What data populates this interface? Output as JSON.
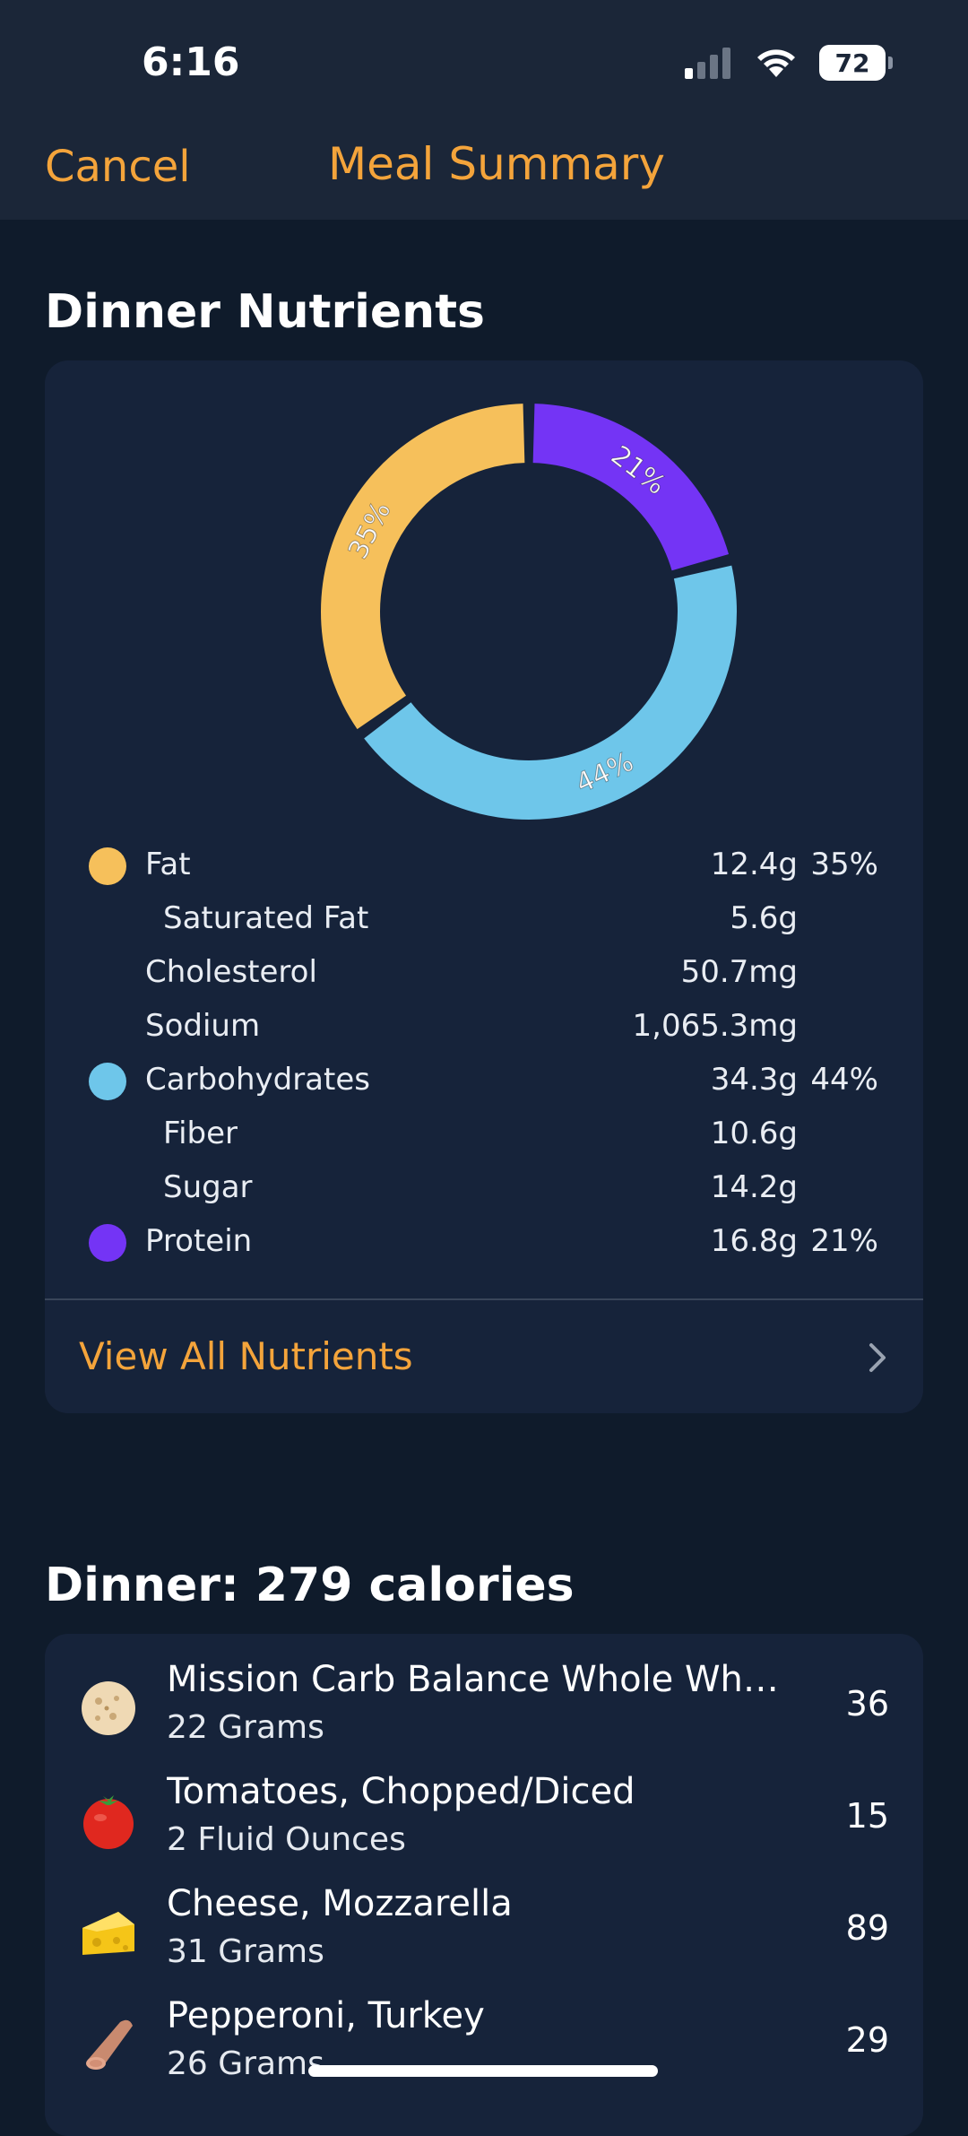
{
  "status": {
    "time": "6:16",
    "battery": "72",
    "signal_icon": "cellular-signal-icon",
    "wifi_icon": "wifi-icon"
  },
  "nav": {
    "cancel": "Cancel",
    "title": "Meal Summary"
  },
  "nutrients": {
    "title": "Dinner Nutrients",
    "rows": [
      {
        "label": "Fat",
        "amount": "12.4g",
        "pct": "35%",
        "color": "#f6c05b",
        "sub": false
      },
      {
        "label": "Saturated Fat",
        "amount": "5.6g",
        "pct": "",
        "color": "",
        "sub": true
      },
      {
        "label": "Cholesterol",
        "amount": "50.7mg",
        "pct": "",
        "color": "",
        "sub": false
      },
      {
        "label": "Sodium",
        "amount": "1,065.3mg",
        "pct": "",
        "color": "",
        "sub": false
      },
      {
        "label": "Carbohydrates",
        "amount": "34.3g",
        "pct": "44%",
        "color": "#6ec6ea",
        "sub": false
      },
      {
        "label": "Fiber",
        "amount": "10.6g",
        "pct": "",
        "color": "",
        "sub": true
      },
      {
        "label": "Sugar",
        "amount": "14.2g",
        "pct": "",
        "color": "",
        "sub": true
      },
      {
        "label": "Protein",
        "amount": "16.8g",
        "pct": "21%",
        "color": "#7434f5",
        "sub": false
      }
    ],
    "view_all": "View All Nutrients"
  },
  "chart_data": {
    "type": "pie",
    "donut": true,
    "categories": [
      "Fat",
      "Carbohydrates",
      "Protein"
    ],
    "values": [
      35,
      44,
      21
    ],
    "labels": [
      "35%",
      "44%",
      "21%"
    ],
    "colors": [
      "#f6c05b",
      "#6ec6ea",
      "#7434f5"
    ]
  },
  "dinner": {
    "title": "Dinner: 279 calories",
    "foods": [
      {
        "name": "Mission Carb Balance Whole Wheat T...",
        "qty": "22 Grams",
        "cal": "36",
        "icon": "tortilla-icon"
      },
      {
        "name": "Tomatoes, Chopped/Diced",
        "qty": "2 Fluid Ounces",
        "cal": "15",
        "icon": "tomato-icon"
      },
      {
        "name": "Cheese, Mozzarella",
        "qty": "31 Grams",
        "cal": "89",
        "icon": "cheese-icon"
      },
      {
        "name": "Pepperoni, Turkey",
        "qty": "26 Grams",
        "cal": "29",
        "icon": "pepperoni-icon"
      }
    ]
  }
}
